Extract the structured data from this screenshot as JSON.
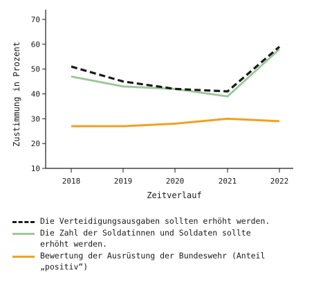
{
  "chart_data": {
    "type": "line",
    "xlabel": "Zeitverlauf",
    "ylabel": "Zustimmung in Prozent",
    "x": [
      "2018",
      "2019",
      "2020",
      "2021",
      "2022"
    ],
    "ylim": [
      10,
      70
    ],
    "yticks": [
      10,
      20,
      30,
      40,
      50,
      60,
      70
    ],
    "grid": false,
    "legend_position": "bottom",
    "series": [
      {
        "name": "Die Verteidigungsausgaben sollten erhöht werden.",
        "values": [
          51,
          45,
          42,
          41,
          59
        ],
        "color": "#1a1a1a",
        "style": "dashed"
      },
      {
        "name": "Die Zahl der Soldatinnen und Soldaten sollte erhöht werden.",
        "values": [
          47,
          43,
          42,
          39,
          58
        ],
        "color": "#9dc89a",
        "style": "solid"
      },
      {
        "name": "Bewertung der Ausrüstung der Bundeswehr (Anteil „positiv“)",
        "values": [
          27,
          27,
          28,
          30,
          29
        ],
        "color": "#f0a11f",
        "style": "solid"
      }
    ]
  }
}
